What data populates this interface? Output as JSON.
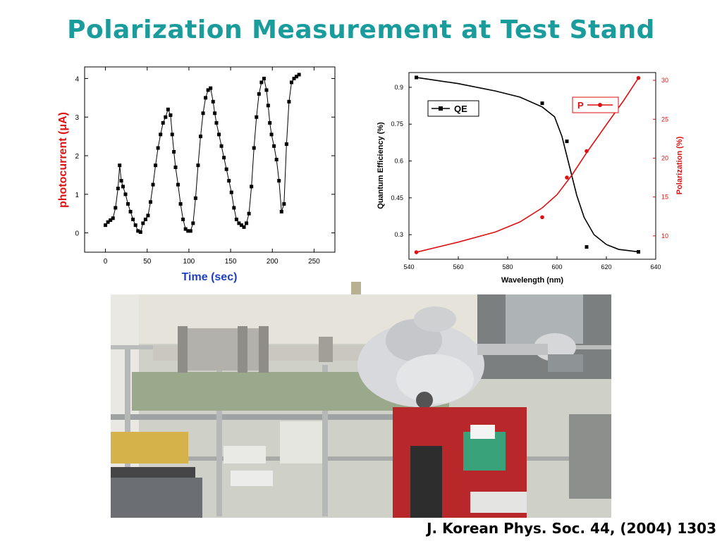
{
  "slide": {
    "title": "Polarization Measurement at Test Stand",
    "citation": "J. Korean Phys. Soc. 44, (2004) 1303"
  },
  "colors": {
    "title": "#1a9c9c",
    "qe": "#000000",
    "polarization": "#dd1111",
    "photocurrent_label": "#dd1111",
    "time_label": "#1f3fbf"
  },
  "chart_data": [
    {
      "type": "scatter",
      "title": "",
      "xlabel": "Time (sec)",
      "ylabel": "photocurrent (μA)",
      "xlim": [
        -25,
        275
      ],
      "ylim": [
        -0.5,
        4.3
      ],
      "xticks": [
        0,
        50,
        100,
        150,
        200,
        250
      ],
      "yticks": [
        0,
        1,
        2,
        3,
        4
      ],
      "connected": true,
      "x": [
        0,
        3,
        6,
        9,
        12,
        15,
        17,
        19,
        21,
        24,
        27,
        30,
        33,
        36,
        39,
        42,
        45,
        48,
        51,
        54,
        57,
        60,
        63,
        66,
        69,
        72,
        75,
        78,
        80,
        82,
        84,
        87,
        90,
        93,
        96,
        99,
        102,
        105,
        108,
        111,
        114,
        117,
        120,
        123,
        126,
        129,
        131,
        133,
        136,
        139,
        142,
        145,
        148,
        151,
        154,
        157,
        160,
        163,
        166,
        169,
        172,
        175,
        178,
        181,
        184,
        187,
        190,
        193,
        195,
        197,
        199,
        202,
        205,
        208,
        211,
        214,
        217,
        220,
        223,
        226,
        229,
        232
      ],
      "y": [
        0.2,
        0.28,
        0.33,
        0.38,
        0.65,
        1.15,
        1.75,
        1.35,
        1.2,
        1.0,
        0.75,
        0.55,
        0.35,
        0.2,
        0.05,
        0.02,
        0.25,
        0.35,
        0.45,
        0.8,
        1.25,
        1.75,
        2.2,
        2.55,
        2.85,
        3.0,
        3.2,
        3.05,
        2.55,
        2.1,
        1.7,
        1.25,
        0.75,
        0.35,
        0.1,
        0.05,
        0.05,
        0.25,
        0.9,
        1.75,
        2.5,
        3.1,
        3.5,
        3.7,
        3.75,
        3.4,
        3.1,
        2.85,
        2.55,
        2.25,
        1.95,
        1.65,
        1.35,
        1.05,
        0.65,
        0.35,
        0.25,
        0.2,
        0.15,
        0.25,
        0.5,
        1.2,
        2.2,
        3.0,
        3.6,
        3.9,
        4.0,
        3.7,
        3.3,
        2.85,
        2.55,
        2.25,
        1.9,
        1.35,
        0.55,
        0.75,
        2.3,
        3.4,
        3.9,
        4.0,
        4.05,
        4.1
      ]
    },
    {
      "type": "line",
      "title": "",
      "xlabel": "Wavelength (nm)",
      "xlim": [
        540,
        640
      ],
      "xticks": [
        540,
        560,
        580,
        600,
        620,
        640
      ],
      "ylabel_left": "Quantum Efficiency (%)",
      "ylim_left": [
        0.2,
        0.96
      ],
      "yticks_left": [
        "0.3",
        "0.45",
        "0.6",
        "0.75",
        "0.9"
      ],
      "ylabel_right": "Polarization (%)",
      "ylim_right": [
        7,
        31
      ],
      "yticks_right": [
        "10",
        "15",
        "20",
        "25",
        "30"
      ],
      "series": [
        {
          "name": "QE",
          "axis": "left",
          "color": "#000000",
          "marker": "square",
          "points_x": [
            543,
            594,
            604,
            612,
            633
          ],
          "points_y": [
            0.94,
            0.835,
            0.68,
            0.25,
            0.23
          ],
          "curve_x": [
            543,
            560,
            575,
            585,
            594,
            599,
            602,
            605,
            608,
            611,
            615,
            620,
            625,
            633
          ],
          "curve_y": [
            0.94,
            0.915,
            0.885,
            0.86,
            0.82,
            0.78,
            0.7,
            0.58,
            0.46,
            0.37,
            0.3,
            0.26,
            0.24,
            0.23
          ]
        },
        {
          "name": "P",
          "axis": "right",
          "color": "#dd1111",
          "marker": "circle",
          "points_x": [
            543,
            594,
            604,
            612,
            633
          ],
          "points_y": [
            7.9,
            12.4,
            17.5,
            20.9,
            30.3
          ],
          "curve_x": [
            543,
            560,
            575,
            585,
            594,
            600,
            606,
            612,
            620,
            627,
            633
          ],
          "curve_y": [
            7.9,
            9.2,
            10.5,
            11.8,
            13.6,
            15.3,
            17.8,
            20.7,
            24.3,
            27.4,
            30.3
          ]
        }
      ],
      "legend": [
        "QE",
        "P"
      ],
      "legend_placement": "top-left and top-right"
    }
  ]
}
